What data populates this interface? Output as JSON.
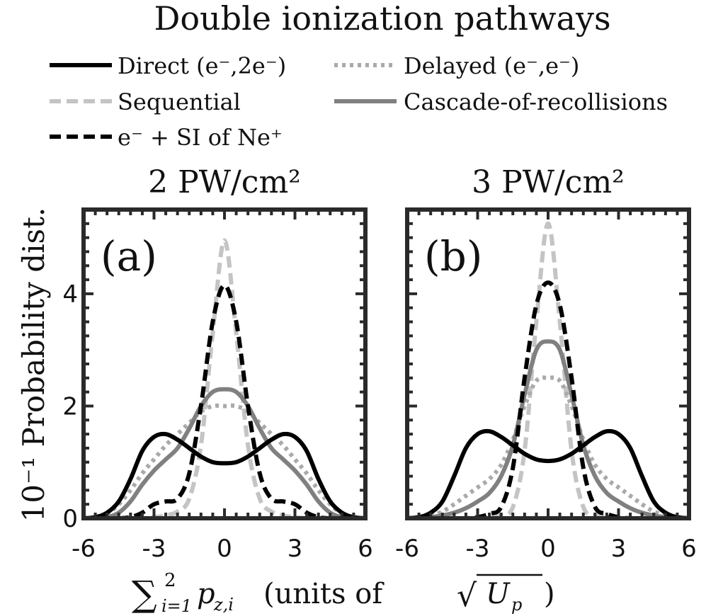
{
  "figure": {
    "title": "Double ionization pathways",
    "ylabel": "10⁻¹ Probability dist.",
    "xlabel": {
      "sum_symbol": "∑",
      "sum_upper": "2",
      "sum_lower": "i=1",
      "variable": "p",
      "variable_subscript": "z,i",
      "units_text": "(units of ",
      "sqrt_symbol": "√",
      "root_var": "U",
      "root_subscript": "p",
      "close_paren": ")"
    }
  },
  "legend": {
    "placement": "top, above panels",
    "entries": [
      {
        "label": "Direct (e⁻,2e⁻)",
        "color": "#000000",
        "style": "solid"
      },
      {
        "label": "Delayed (e⁻,e⁻)",
        "color": "#aaaaaa",
        "style": "dotted"
      },
      {
        "label": "Sequential",
        "color": "#c4c4c4",
        "style": "dashed"
      },
      {
        "label": "Cascade-of-recollisions",
        "color": "#808080",
        "style": "solid"
      },
      {
        "label": "e⁻ + SI of Ne⁺",
        "color": "#000000",
        "style": "dashed"
      }
    ]
  },
  "chart_data": [
    {
      "type": "line",
      "panel_label": "(a)",
      "title": "2 PW/cm²",
      "xlim": [
        -6,
        6
      ],
      "ylim": [
        0,
        5.5
      ],
      "x_ticks": [
        -6,
        -3,
        0,
        3,
        6
      ],
      "x_tick_labels": [
        "-6",
        "-3",
        "0",
        "3",
        "6"
      ],
      "y_ticks": [
        0,
        2,
        4
      ],
      "y_tick_labels": [
        "0",
        "2",
        "4"
      ],
      "x": [
        -6,
        -5.5,
        -5,
        -4.5,
        -4,
        -3.5,
        -3,
        -2.5,
        -2,
        -1.5,
        -1,
        -0.5,
        0,
        0.5,
        1,
        1.5,
        2,
        2.5,
        3,
        3.5,
        4,
        4.5,
        5,
        5.5,
        6
      ],
      "series": [
        {
          "name": "Sequential",
          "values": [
            0,
            0,
            0,
            0,
            0,
            0,
            0.02,
            0.05,
            0.12,
            0.35,
            1.3,
            3.3,
            4.95,
            3.3,
            1.3,
            0.35,
            0.12,
            0.05,
            0.02,
            0,
            0,
            0,
            0,
            0,
            0
          ]
        },
        {
          "name": "Delayed (e⁻,e⁻)",
          "values": [
            0,
            0.02,
            0.08,
            0.25,
            0.5,
            0.8,
            1.05,
            1.3,
            1.5,
            1.7,
            1.9,
            2.0,
            2.0,
            2.0,
            1.9,
            1.7,
            1.5,
            1.3,
            1.05,
            0.8,
            0.5,
            0.25,
            0.08,
            0.02,
            0
          ]
        },
        {
          "name": "Cascade-of-recollisions",
          "values": [
            0,
            0,
            0.02,
            0.1,
            0.3,
            0.6,
            0.85,
            1.05,
            1.25,
            1.6,
            2.0,
            2.25,
            2.3,
            2.25,
            2.0,
            1.6,
            1.25,
            1.05,
            0.85,
            0.6,
            0.3,
            0.1,
            0.02,
            0,
            0
          ]
        },
        {
          "name": "e⁻ + SI of Ne⁺",
          "values": [
            0,
            0,
            0,
            0,
            0.02,
            0.1,
            0.25,
            0.3,
            0.35,
            0.8,
            2.0,
            3.5,
            4.15,
            3.5,
            2.0,
            0.8,
            0.35,
            0.3,
            0.25,
            0.1,
            0.02,
            0,
            0,
            0,
            0
          ]
        },
        {
          "name": "Direct (e⁻,2e⁻)",
          "values": [
            0,
            0.02,
            0.1,
            0.3,
            0.7,
            1.2,
            1.45,
            1.5,
            1.4,
            1.25,
            1.1,
            1.0,
            0.98,
            1.0,
            1.1,
            1.25,
            1.4,
            1.5,
            1.45,
            1.2,
            0.7,
            0.3,
            0.1,
            0.02,
            0
          ]
        }
      ]
    },
    {
      "type": "line",
      "panel_label": "(b)",
      "title": "3 PW/cm²",
      "xlim": [
        -6,
        6
      ],
      "ylim": [
        0,
        5.5
      ],
      "x_ticks": [
        -6,
        -3,
        0,
        3,
        6
      ],
      "x_tick_labels": [
        "-6",
        "-3",
        "0",
        "3",
        "6"
      ],
      "y_ticks": [
        0,
        2,
        4
      ],
      "y_tick_labels": [
        "",
        "",
        ""
      ],
      "x": [
        -6,
        -5.5,
        -5,
        -4.5,
        -4,
        -3.5,
        -3,
        -2.5,
        -2,
        -1.5,
        -1,
        -0.5,
        0,
        0.5,
        1,
        1.5,
        2,
        2.5,
        3,
        3.5,
        4,
        4.5,
        5,
        5.5,
        6
      ],
      "series": [
        {
          "name": "Sequential",
          "values": [
            0,
            0,
            0,
            0,
            0,
            0,
            0,
            0.02,
            0.05,
            0.2,
            1.2,
            3.5,
            5.25,
            3.5,
            1.2,
            0.2,
            0.05,
            0.02,
            0,
            0,
            0,
            0,
            0,
            0,
            0
          ]
        },
        {
          "name": "Delayed (e⁻,e⁻)",
          "values": [
            0,
            0.02,
            0.05,
            0.12,
            0.25,
            0.4,
            0.55,
            0.7,
            0.95,
            1.4,
            2.0,
            2.45,
            2.5,
            2.45,
            2.0,
            1.4,
            0.95,
            0.7,
            0.55,
            0.4,
            0.25,
            0.12,
            0.05,
            0.02,
            0
          ]
        },
        {
          "name": "Cascade-of-recollisions",
          "values": [
            0,
            0.01,
            0.02,
            0.05,
            0.1,
            0.18,
            0.3,
            0.45,
            0.75,
            1.3,
            2.2,
            3.0,
            3.15,
            3.0,
            2.2,
            1.3,
            0.75,
            0.45,
            0.3,
            0.18,
            0.1,
            0.05,
            0.02,
            0.01,
            0
          ]
        },
        {
          "name": "e⁻ + SI of Ne⁺",
          "values": [
            0,
            0,
            0,
            0,
            0,
            0,
            0.02,
            0.08,
            0.2,
            0.9,
            2.5,
            3.8,
            4.2,
            3.8,
            2.5,
            0.9,
            0.2,
            0.08,
            0.02,
            0,
            0,
            0,
            0,
            0,
            0
          ]
        },
        {
          "name": "Direct (e⁻,2e⁻)",
          "values": [
            0,
            0.02,
            0.1,
            0.3,
            0.75,
            1.25,
            1.5,
            1.55,
            1.45,
            1.3,
            1.15,
            1.05,
            1.02,
            1.05,
            1.15,
            1.3,
            1.45,
            1.55,
            1.5,
            1.25,
            0.75,
            0.3,
            0.1,
            0.02,
            0
          ]
        }
      ]
    }
  ]
}
